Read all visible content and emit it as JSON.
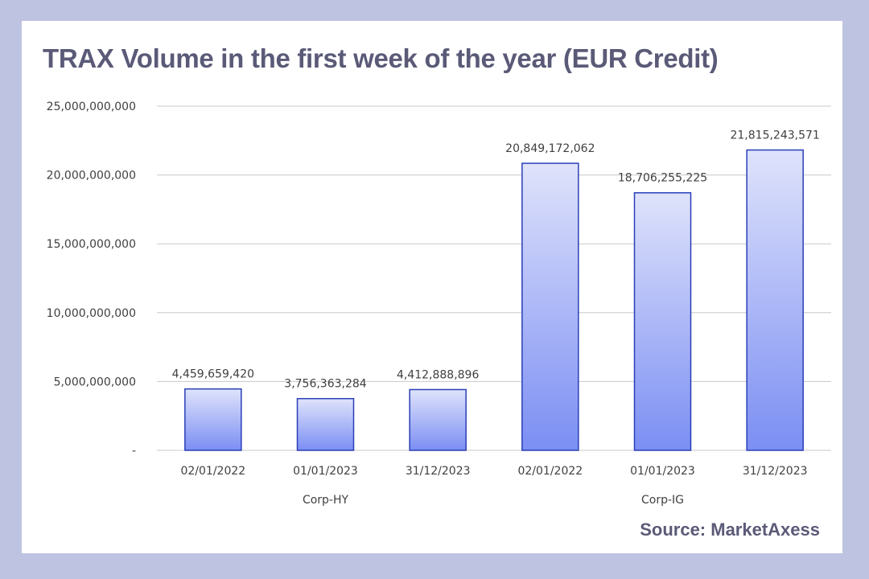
{
  "chart_data": {
    "type": "bar",
    "title": "TRAX Volume in the first week of the year (EUR Credit)",
    "source": "Source: MarketAxess",
    "groups": [
      {
        "name": "Corp-HY",
        "categories": [
          "02/01/2022",
          "01/01/2023",
          "31/12/2023"
        ]
      },
      {
        "name": "Corp-IG",
        "categories": [
          "02/01/2022",
          "01/01/2023",
          "31/12/2023"
        ]
      }
    ],
    "categories": [
      "02/01/2022",
      "01/01/2023",
      "31/12/2023",
      "02/01/2022",
      "01/01/2023",
      "31/12/2023"
    ],
    "values": [
      4459659420,
      3756363284,
      4412888896,
      20849172062,
      18706255225,
      21815243571
    ],
    "data_labels": [
      "4,459,659,420",
      "3,756,363,284",
      "4,412,888,896",
      "20,849,172,062",
      "18,706,255,225",
      "21,815,243,571"
    ],
    "ylim": [
      0,
      25000000000
    ],
    "yticks": [
      0,
      5000000000,
      10000000000,
      15000000000,
      20000000000,
      25000000000
    ],
    "ytick_labels": [
      "-",
      "5,000,000,000",
      "10,000,000,000",
      "15,000,000,000",
      "20,000,000,000",
      "25,000,000,000"
    ],
    "xlabel": "",
    "ylabel": "",
    "grid": true,
    "colors": {
      "bar_top": "#dfe3fb",
      "bar_bottom": "#7b8ef3",
      "bar_edge": "#2a3fb8",
      "grid": "#c8c8c8"
    }
  }
}
